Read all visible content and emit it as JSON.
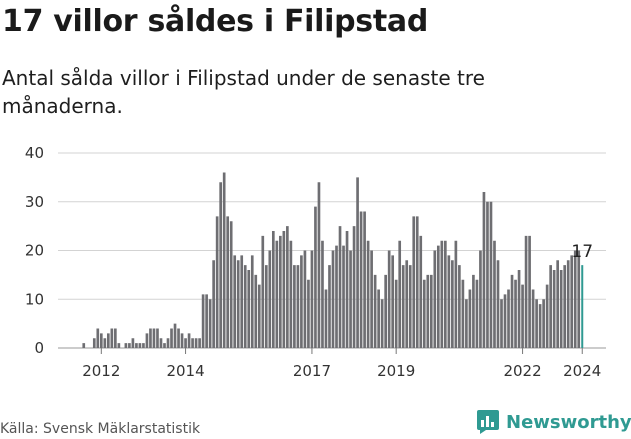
{
  "header": {
    "title": "17 villor såldes i Filipstad",
    "subtitle": "Antal sålda villor i Filipstad under de senaste tre månaderna."
  },
  "footer": {
    "source": "Källa: Svensk Mäklarstatistik",
    "brand_name": "Newsworthy",
    "brand_icon": "newsworthy-logo-icon"
  },
  "colors": {
    "bar": "#6e6e72",
    "highlight": "#2f9a92",
    "grid": "#d3d3d3",
    "axis_text": "#333333",
    "brand": "#2f9a92"
  },
  "chart_data": {
    "type": "bar",
    "title": "17 villor såldes i Filipstad",
    "subtitle": "Antal sålda villor i Filipstad under de senaste tre månaderna.",
    "xlabel": "",
    "ylabel": "",
    "ylim": [
      0,
      40
    ],
    "y_ticks": [
      0,
      10,
      20,
      30,
      40
    ],
    "x_tick_labels": [
      "2012",
      "2014",
      "2017",
      "2019",
      "2022",
      "2024"
    ],
    "grid": true,
    "x_start": "2011-08",
    "x_end": "2024-01",
    "period": "rolling 3 months, monthly",
    "values": [
      1,
      0,
      0,
      2,
      4,
      3,
      2,
      3,
      4,
      4,
      1,
      0,
      1,
      1,
      2,
      1,
      1,
      1,
      3,
      4,
      4,
      4,
      2,
      1,
      2,
      4,
      5,
      4,
      3,
      2,
      3,
      2,
      2,
      2,
      11,
      11,
      10,
      18,
      27,
      34,
      36,
      27,
      26,
      19,
      18,
      19,
      17,
      16,
      19,
      15,
      13,
      23,
      17,
      20,
      24,
      22,
      23,
      24,
      25,
      22,
      17,
      17,
      19,
      20,
      14,
      20,
      29,
      34,
      22,
      12,
      17,
      20,
      21,
      25,
      21,
      24,
      20,
      25,
      35,
      28,
      28,
      22,
      20,
      15,
      12,
      10,
      15,
      20,
      19,
      14,
      22,
      17,
      18,
      17,
      27,
      27,
      23,
      14,
      15,
      15,
      20,
      21,
      22,
      22,
      19,
      18,
      22,
      17,
      14,
      10,
      12,
      15,
      14,
      20,
      32,
      30,
      30,
      22,
      18,
      10,
      11,
      12,
      15,
      14,
      16,
      13,
      23,
      23,
      12,
      10,
      9,
      10,
      13,
      17,
      16,
      18,
      16,
      17,
      18,
      19,
      20,
      20,
      17
    ],
    "highlight": {
      "label": "17",
      "value": 17,
      "last_point": true
    }
  }
}
